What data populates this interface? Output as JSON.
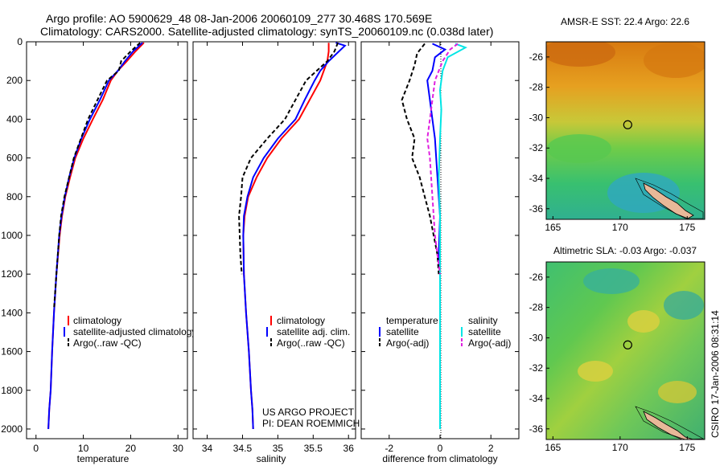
{
  "header": {
    "line1": "Argo profile: AO 5900629_48 08-Jan-2006 20060109_277 30.468S 170.569E",
    "line2": "Climatology: CARS2000. Satellite-adjusted climatology: synTS_20060109.nc (0.038d later)"
  },
  "colors": {
    "climatology": "#ff0000",
    "satellite": "#0000ff",
    "argo": "#000000",
    "salinity_satellite": "#00e5e5",
    "salinity_argo": "#e020e0"
  },
  "chart_data": [
    {
      "type": "line",
      "panel": "temperature",
      "xlabel": "temperature",
      "ylabel": "",
      "xlim": [
        -2,
        32
      ],
      "ylim": [
        2050,
        0
      ],
      "x_ticks": [
        0,
        10,
        20,
        30
      ],
      "y_ticks": [
        0,
        200,
        400,
        600,
        800,
        1000,
        1200,
        1400,
        1600,
        1800,
        2000
      ],
      "legend": [
        "climatology",
        "satellite-adjusted climatology",
        "Argo(..raw -QC)"
      ],
      "series": [
        {
          "name": "climatology",
          "color": "#ff0000",
          "x": [
            22.8,
            21.0,
            19.2,
            17.3,
            15.8,
            14.1,
            12.0,
            10.0,
            8.3,
            7.2,
            6.2,
            5.5,
            5.0,
            4.3,
            3.8,
            3.4,
            3.1,
            2.8,
            2.6
          ],
          "y": [
            5,
            50,
            100,
            150,
            200,
            300,
            400,
            500,
            600,
            700,
            800,
            900,
            1000,
            1200,
            1400,
            1600,
            1800,
            1900,
            2000
          ]
        },
        {
          "name": "satellite-adjusted climatology",
          "color": "#0000ff",
          "x": [
            22.5,
            20.5,
            18.8,
            17.3,
            15.4,
            13.5,
            11.4,
            9.6,
            8.1,
            7.0,
            6.1,
            5.4,
            4.9,
            4.3,
            3.8,
            3.4,
            3.1,
            2.8,
            2.6
          ],
          "y": [
            5,
            50,
            100,
            150,
            200,
            300,
            400,
            500,
            600,
            700,
            800,
            900,
            1000,
            1200,
            1400,
            1600,
            1800,
            1900,
            2000
          ]
        },
        {
          "name": "Argo(..raw -QC)",
          "color": "#000000",
          "x": [
            22.0,
            20.0,
            18.0,
            17.5,
            15.0,
            13.0,
            11.0,
            9.5,
            8.0,
            7.0,
            6.0,
            5.3,
            4.9,
            4.3,
            3.8
          ],
          "y": [
            5,
            50,
            100,
            150,
            200,
            300,
            400,
            500,
            600,
            700,
            800,
            900,
            1000,
            1200,
            1380
          ]
        }
      ]
    },
    {
      "type": "line",
      "panel": "salinity",
      "xlabel": "salinity",
      "ylabel": "",
      "xlim": [
        33.8,
        36.1
      ],
      "ylim": [
        2050,
        0
      ],
      "x_ticks": [
        34,
        34.5,
        35,
        35.5,
        36
      ],
      "legend": [
        "climatology",
        "satellite adj. clim.",
        "Argo(..raw -QC)"
      ],
      "annotation": [
        "US ARGO PROJECT",
        "PI: DEAN ROEMMICH"
      ],
      "series": [
        {
          "name": "climatology",
          "color": "#ff0000",
          "x": [
            35.72,
            35.72,
            35.7,
            35.65,
            35.6,
            35.45,
            35.3,
            35.05,
            34.85,
            34.7,
            34.58,
            34.53,
            34.51,
            34.52,
            34.55,
            34.59,
            34.62,
            34.64,
            34.65
          ],
          "y": [
            5,
            50,
            100,
            150,
            200,
            300,
            400,
            500,
            600,
            700,
            800,
            900,
            1000,
            1200,
            1400,
            1600,
            1800,
            1900,
            2000
          ]
        },
        {
          "name": "satellite adj. clim.",
          "color": "#0000ff",
          "x": [
            35.82,
            35.95,
            35.72,
            35.6,
            35.52,
            35.38,
            35.25,
            35.0,
            34.8,
            34.65,
            34.57,
            34.52,
            34.51,
            34.52,
            34.55,
            34.59,
            34.62,
            34.64,
            34.65
          ],
          "y": [
            5,
            20,
            100,
            150,
            200,
            300,
            400,
            500,
            600,
            700,
            800,
            900,
            1000,
            1200,
            1400,
            1600,
            1800,
            1900,
            2000
          ]
        },
        {
          "name": "Argo(..raw -QC)",
          "color": "#000000",
          "x": [
            35.85,
            35.8,
            35.7,
            35.55,
            35.4,
            35.25,
            35.1,
            34.85,
            34.62,
            34.5,
            34.48,
            34.45,
            34.46,
            34.47,
            34.49
          ],
          "y": [
            5,
            50,
            100,
            150,
            200,
            300,
            400,
            500,
            600,
            700,
            800,
            900,
            1000,
            1100,
            1200
          ]
        }
      ]
    },
    {
      "type": "line",
      "panel": "difference",
      "xlabel": "difference from climatology",
      "ylabel": "",
      "xlim": [
        -3.1,
        3.1
      ],
      "ylim": [
        2050,
        0
      ],
      "x_ticks": [
        -2,
        0,
        2
      ],
      "legend_groups": [
        {
          "title": "temperature",
          "items": [
            "satellite",
            "Argo(-adj)"
          ]
        },
        {
          "title": "salinity",
          "items": [
            "satellite",
            "Argo(-adj)"
          ]
        }
      ],
      "series": [
        {
          "name": "temperature satellite",
          "color": "#0000ff",
          "x": [
            -0.3,
            0.2,
            -0.2,
            -0.3,
            -0.5,
            -0.4,
            -0.3,
            -0.2,
            -0.1,
            0,
            -0.05,
            0,
            0,
            0
          ],
          "y": [
            10,
            40,
            80,
            150,
            200,
            300,
            400,
            500,
            700,
            900,
            1100,
            1200,
            1400,
            1800
          ]
        },
        {
          "name": "temperature Argo(-adj)",
          "color": "#000000",
          "x": [
            -0.6,
            -0.9,
            -1.0,
            -1.2,
            -1.5,
            -1.3,
            -1.0,
            -1.1,
            -0.8,
            -0.6,
            -0.4,
            -0.1,
            -0.05
          ],
          "y": [
            10,
            60,
            120,
            200,
            300,
            400,
            500,
            600,
            700,
            800,
            900,
            1100,
            1200
          ]
        },
        {
          "name": "salinity satellite",
          "color": "#00e5e5",
          "x": [
            0.6,
            1.0,
            0.3,
            0.1,
            0,
            0.05,
            0,
            -0.05,
            0,
            0,
            0,
            0,
            0,
            0
          ],
          "y": [
            10,
            30,
            80,
            150,
            250,
            350,
            500,
            700,
            900,
            1100,
            1300,
            1600,
            1800,
            2000
          ]
        },
        {
          "name": "salinity Argo(-adj)",
          "color": "#e020e0",
          "x": [
            0.7,
            0.4,
            0.1,
            -0.2,
            -0.3,
            -0.4,
            -0.5,
            -0.4,
            -0.3,
            -0.2,
            -0.1,
            0
          ],
          "y": [
            10,
            40,
            100,
            200,
            300,
            400,
            500,
            600,
            800,
            1000,
            1100,
            1200
          ]
        }
      ]
    },
    {
      "type": "heatmap",
      "panel": "sst_map",
      "title": "AMSR-E SST: 22.4 Argo: 22.6",
      "xlim": [
        164.5,
        176.3
      ],
      "ylim": [
        -36.7,
        -25
      ],
      "x_ticks": [
        165,
        170,
        175
      ],
      "y_ticks": [
        -26,
        -28,
        -30,
        -32,
        -34,
        -36
      ],
      "argo_position": {
        "lon": 170.569,
        "lat": -30.468
      }
    },
    {
      "type": "heatmap",
      "panel": "sla_map",
      "title": "Altimetric SLA: -0.03 Argo: -0.037",
      "xlim": [
        164.5,
        176.3
      ],
      "ylim": [
        -36.7,
        -25
      ],
      "x_ticks": [
        165,
        170,
        175
      ],
      "y_ticks": [
        -26,
        -28,
        -30,
        -32,
        -34,
        -36
      ],
      "argo_position": {
        "lon": 170.569,
        "lat": -30.468
      }
    }
  ],
  "footer": {
    "credit": "CSIRO 17-Jan-2006 08:31:14"
  }
}
